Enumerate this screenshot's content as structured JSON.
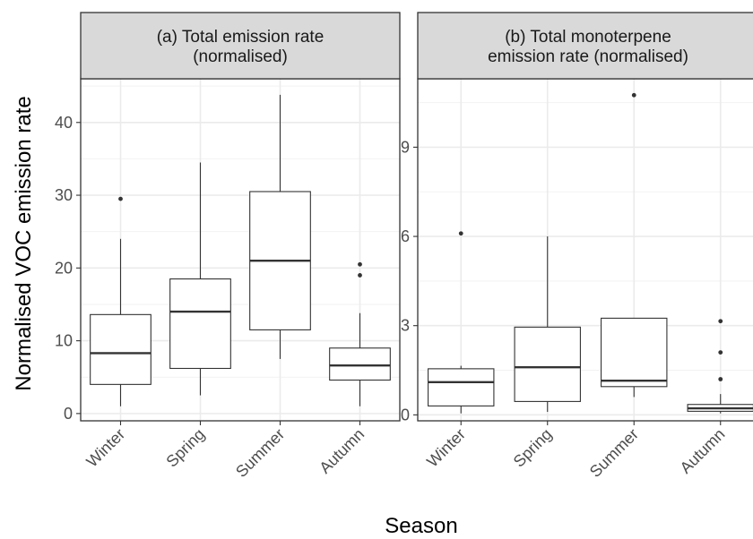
{
  "chart_data": {
    "type": "boxplot",
    "ylabel": "Normalised VOC emission rate",
    "xlabel": "Season",
    "grid": true,
    "categories": [
      "Winter",
      "Spring",
      "Summer",
      "Autumn"
    ],
    "panels": [
      {
        "title": "(a) Total emission rate\n(normalised)",
        "title_lines": [
          "(a) Total emission rate",
          "(normalised)"
        ],
        "ylim": [
          -1,
          46
        ],
        "yticks": [
          0,
          10,
          20,
          30,
          40
        ],
        "boxes": [
          {
            "category": "Winter",
            "whisker_low": 1,
            "q1": 4.0,
            "median": 8.3,
            "q3": 13.6,
            "whisker_high": 24.0,
            "outliers": [
              29.5
            ]
          },
          {
            "category": "Spring",
            "whisker_low": 2.5,
            "q1": 6.2,
            "median": 14.0,
            "q3": 18.5,
            "whisker_high": 34.5,
            "outliers": []
          },
          {
            "category": "Summer",
            "whisker_low": 7.5,
            "q1": 11.5,
            "median": 21.0,
            "q3": 30.5,
            "whisker_high": 43.8,
            "outliers": []
          },
          {
            "category": "Autumn",
            "whisker_low": 1,
            "q1": 4.6,
            "median": 6.6,
            "q3": 9.0,
            "whisker_high": 13.8,
            "outliers": [
              19.0,
              20.5
            ]
          }
        ]
      },
      {
        "title": "(b) Total monoterpene\nemission rate (normalised)",
        "title_lines": [
          "(b) Total monoterpene",
          "emission rate (normalised)"
        ],
        "ylim": [
          -0.2,
          11.3
        ],
        "yticks": [
          0,
          3,
          6,
          9
        ],
        "boxes": [
          {
            "category": "Winter",
            "whisker_low": 0.05,
            "q1": 0.3,
            "median": 1.1,
            "q3": 1.55,
            "whisker_high": 1.65,
            "outliers": [
              6.1
            ]
          },
          {
            "category": "Spring",
            "whisker_low": 0.1,
            "q1": 0.45,
            "median": 1.6,
            "q3": 2.95,
            "whisker_high": 6.0,
            "outliers": []
          },
          {
            "category": "Summer",
            "whisker_low": 0.6,
            "q1": 0.95,
            "median": 1.15,
            "q3": 3.25,
            "whisker_high": 3.25,
            "outliers": [
              10.75
            ]
          },
          {
            "category": "Autumn",
            "whisker_low": 0.05,
            "q1": 0.12,
            "median": 0.22,
            "q3": 0.35,
            "whisker_high": 0.7,
            "outliers": [
              1.2,
              2.1,
              3.15
            ]
          }
        ]
      }
    ]
  }
}
